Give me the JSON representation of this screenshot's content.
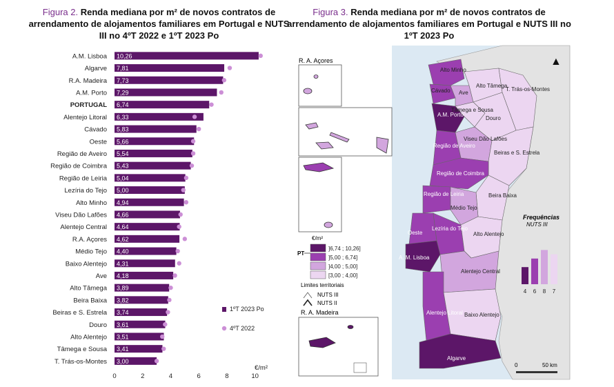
{
  "figure2": {
    "number": "Figura 2.",
    "title": "Renda mediana por m² de novos contratos de arrendamento de alojamentos familiares em Portugal e NUTS III no 4ºT 2022 e 1ºT 2023 Po"
  },
  "figure3": {
    "number": "Figura 3.",
    "title": "Renda mediana por m² de novos contratos de arrendamento de alojamentos familiares em Portugal e NUTS III no 1ºT 2023 Po"
  },
  "chart_data": {
    "type": "bar",
    "orientation": "horizontal",
    "xlabel": "€/m²",
    "xlim": [
      0,
      11
    ],
    "xticks": [
      0,
      2,
      4,
      6,
      8,
      10
    ],
    "grid": false,
    "legend_position": "bottom-right",
    "categories": [
      "A.M. Lisboa",
      "Algarve",
      "R.A. Madeira",
      "A.M. Porto",
      "PORTUGAL",
      "Alentejo Litoral",
      "Cávado",
      "Oeste",
      "Região de Aveiro",
      "Região de Coimbra",
      "Região de Leiria",
      "Lezíria do Tejo",
      "Alto Minho",
      "Viseu Dão Lafões",
      "Alentejo Central",
      "R.A. Açores",
      "Médio Tejo",
      "Baixo Alentejo",
      "Ave",
      "Alto Tâmega",
      "Beira Baixa",
      "Beiras e S. Estrela",
      "Douro",
      "Alto Alentejo",
      "Tâmega e Sousa",
      "T. Trás-os-Montes"
    ],
    "highlight_category": "PORTUGAL",
    "series": [
      {
        "name": "1ºT 2023 Po",
        "kind": "bar",
        "color": "#5c1668",
        "values": [
          10.26,
          7.81,
          7.73,
          7.29,
          6.74,
          6.33,
          5.83,
          5.66,
          5.54,
          5.43,
          5.04,
          5.0,
          4.94,
          4.66,
          4.64,
          4.62,
          4.4,
          4.31,
          4.18,
          3.89,
          3.82,
          3.74,
          3.61,
          3.51,
          3.41,
          3.0
        ],
        "labels": [
          "10,26",
          "7,81",
          "7,73",
          "7,29",
          "6,74",
          "6,33",
          "5,83",
          "5,66",
          "5,54",
          "5,43",
          "5,04",
          "5,00",
          "4,94",
          "4,66",
          "4,64",
          "4,62",
          "4,40",
          "4,31",
          "4,18",
          "3,89",
          "3,82",
          "3,74",
          "3,61",
          "3,51",
          "3,41",
          "3,00"
        ]
      },
      {
        "name": "4ºT 2022",
        "kind": "marker",
        "color": "#cc8fd6",
        "values": [
          10.4,
          8.2,
          7.8,
          7.6,
          6.9,
          5.7,
          6.0,
          5.6,
          5.6,
          5.5,
          5.1,
          4.9,
          5.1,
          4.7,
          4.6,
          5.0,
          4.5,
          4.6,
          4.3,
          4.0,
          3.9,
          3.8,
          3.6,
          3.4,
          3.5,
          3.0
        ]
      }
    ]
  },
  "map": {
    "north_arrow": "▲",
    "insets": {
      "azores": "R. A. Açores",
      "madeira": "R. A. Madeira"
    },
    "legend": {
      "unit": "€/m²",
      "pt_label": "PT",
      "classes": [
        {
          "label": "]6,74 ; 10,26]",
          "color": "#5c1668"
        },
        {
          "label": "]5,00 ; 6,74]",
          "color": "#9b3fb0"
        },
        {
          "label": "]4,00 ; 5,00]",
          "color": "#d2a6de"
        },
        {
          "label": "[3,00 ; 4,00]",
          "color": "#ecd6f1"
        }
      ],
      "limits_title": "Limites territoriais",
      "nuts3": "NUTS III",
      "nuts2": "NUTS II",
      "freq_title": "Frequências",
      "freq_subtitle": "NUTS III",
      "frequencies": [
        4,
        6,
        8,
        7
      ]
    },
    "scale": {
      "zero": "0",
      "label": "50 km"
    },
    "region_labels": [
      "Alto Minho",
      "Cávado",
      "Ave",
      "Alto Tâmega",
      "T. Trás-os-Montes",
      "A.M. Porto",
      "Tâmega e Sousa",
      "Douro",
      "Região de Aveiro",
      "Viseu Dão Lafões",
      "Beiras e S. Estrela",
      "Região de Coimbra",
      "Região de Leiria",
      "Beira Baixa",
      "Médio Tejo",
      "Oeste",
      "Lezíria do Tejo",
      "Alto Alentejo",
      "A. M. Lisboa",
      "Alentejo Central",
      "Alentejo Litoral",
      "Baixo Alentejo",
      "Algarve"
    ],
    "colors": {
      "sea": "#dce9f3",
      "spain": "#e3e3e3",
      "border": "#666666"
    }
  }
}
